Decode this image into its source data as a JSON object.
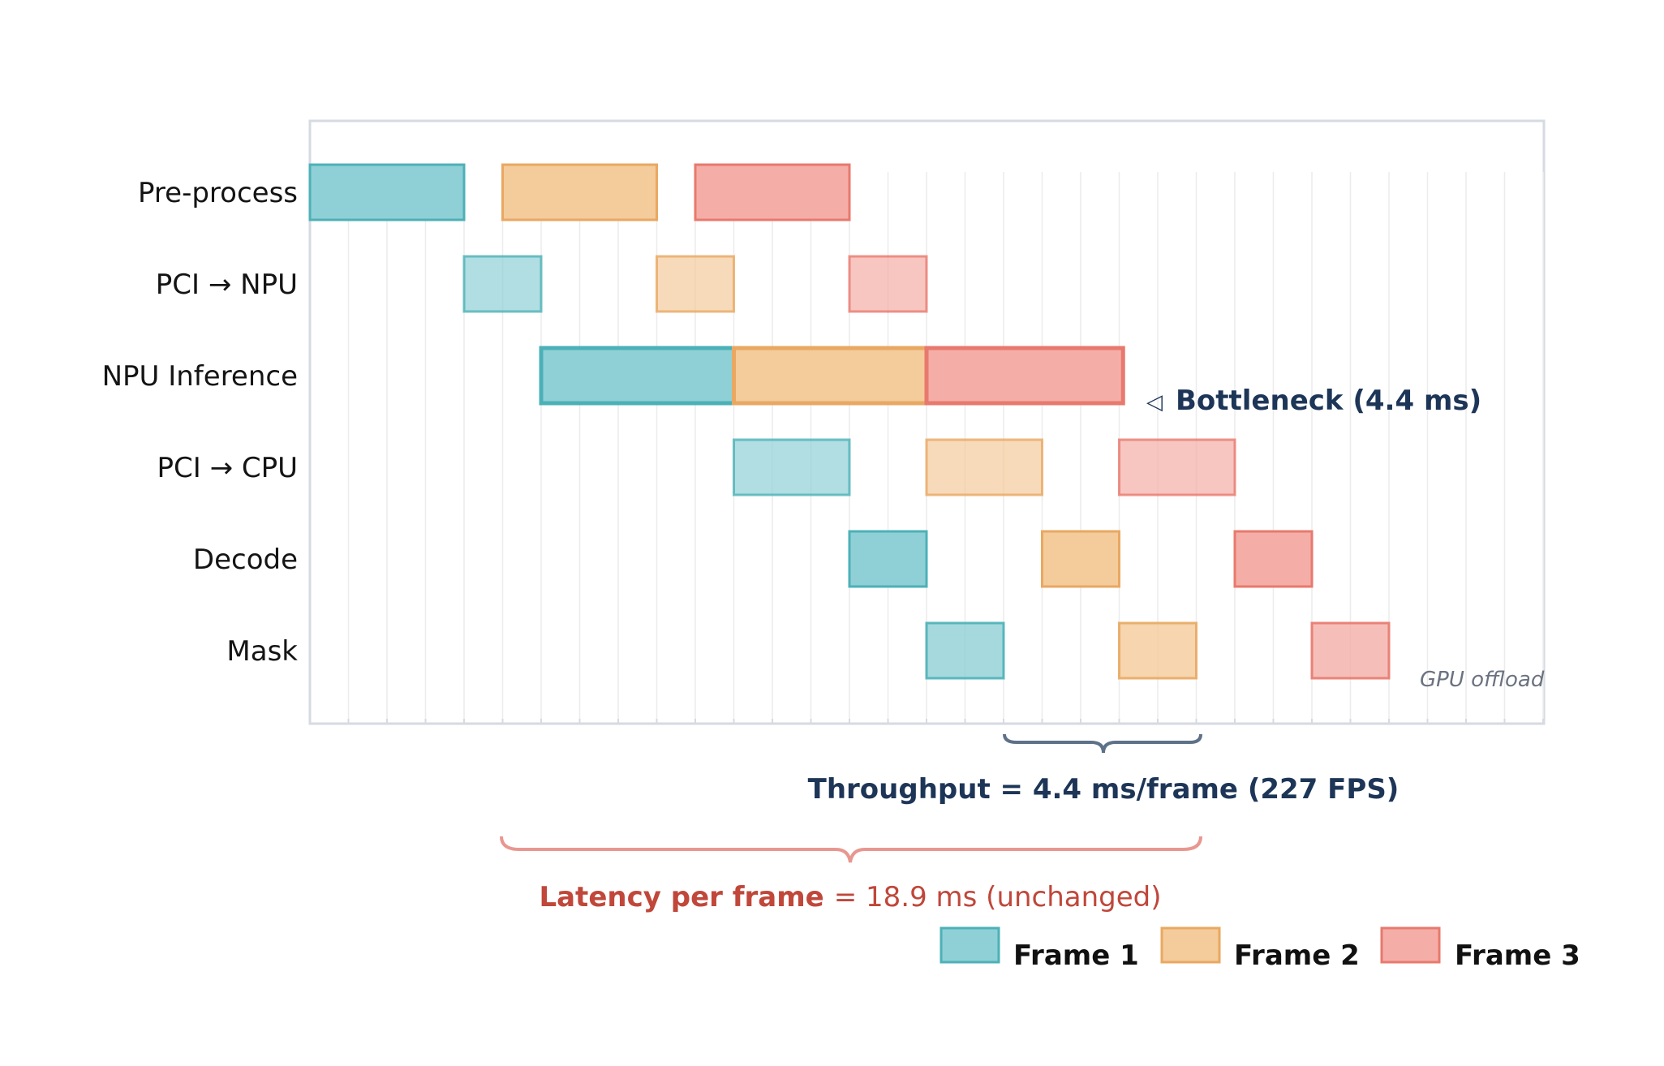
{
  "diagram": {
    "lanes": [
      {
        "id": "preprocess",
        "label": "Pre-process"
      },
      {
        "id": "pci_npu",
        "label": "PCI → NPU"
      },
      {
        "id": "npu_inference",
        "label": "NPU Inference"
      },
      {
        "id": "pci_cpu",
        "label": "PCI → CPU"
      },
      {
        "id": "decode",
        "label": "Decode"
      },
      {
        "id": "mask",
        "label": "Mask"
      }
    ],
    "frames": [
      {
        "id": "f1",
        "label": "Frame 1",
        "fill": "#8fd0d6",
        "stroke": "#4cb1b7"
      },
      {
        "id": "f2",
        "label": "Frame 2",
        "fill": "#f4cb9b",
        "stroke": "#e9a862"
      },
      {
        "id": "f3",
        "label": "Frame 3",
        "fill": "#f4aea7",
        "stroke": "#e8796e"
      }
    ],
    "bottleneck_lane": "npu_inference",
    "bottleneck_marker": "◁",
    "bottleneck_label": "Bottleneck (4.4 ms)",
    "mask_note": "GPU offload",
    "throughput_label": "Throughput = 4.4 ms/frame (227 FPS)",
    "latency_label_bold": "Latency per frame",
    "latency_label_rest": "= 18.9 ms (unchanged)",
    "colors": {
      "frame_border": "#d6dae2",
      "gridline": "#ececec",
      "throughput_brace": "#5d7188",
      "latency_brace": "#e89790"
    }
  }
}
